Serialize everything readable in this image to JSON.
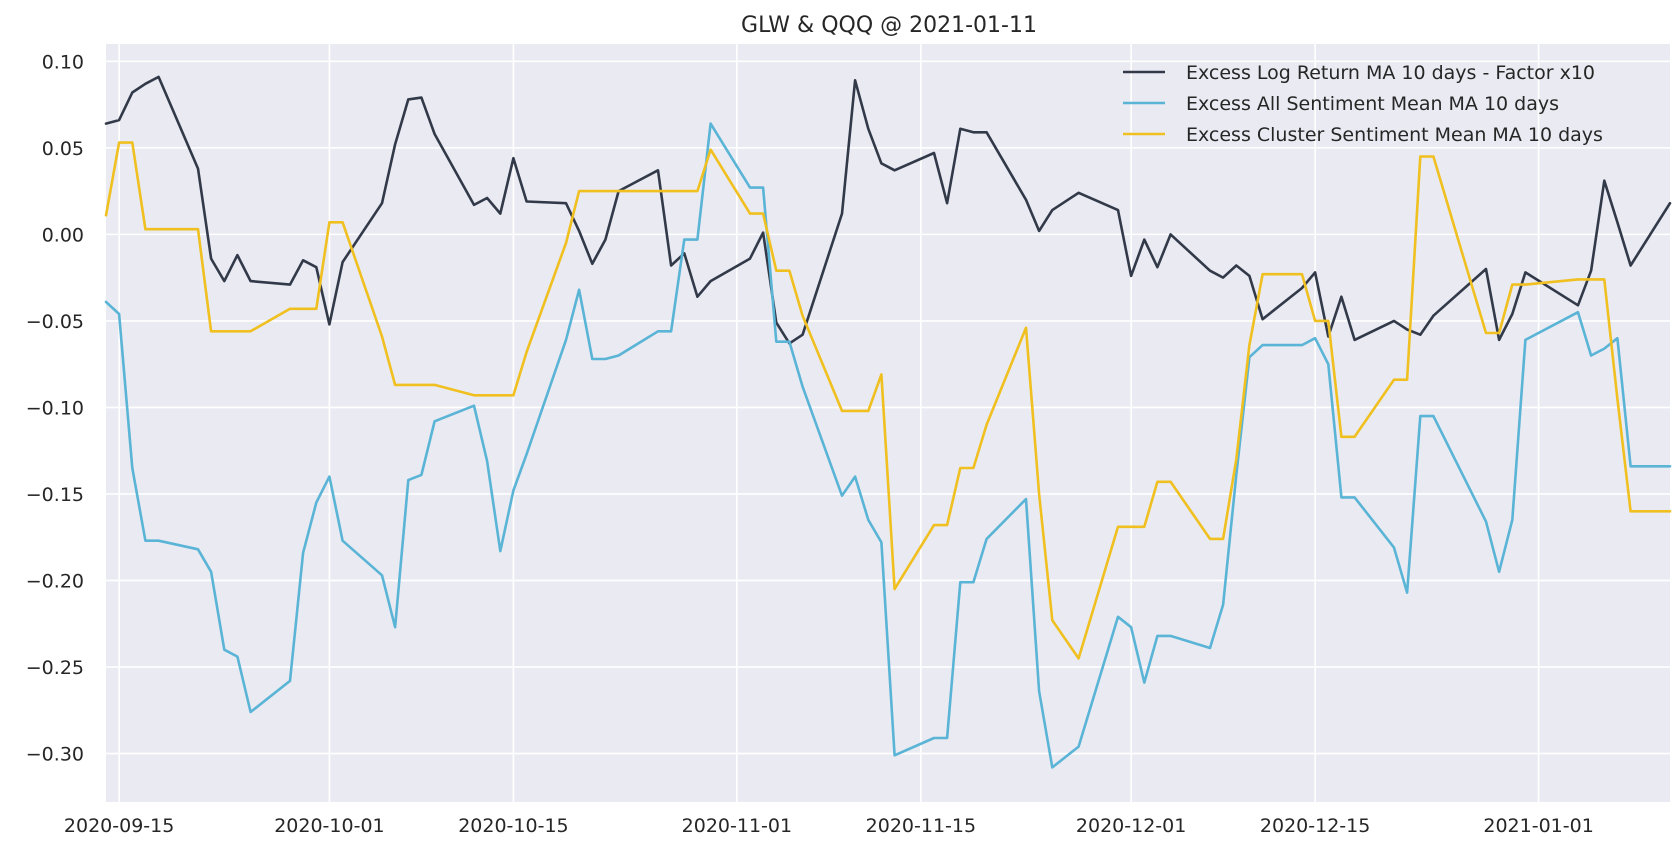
{
  "chart_data": {
    "type": "line",
    "title": "GLW & QQQ @ 2021-01-11",
    "xlabel": "",
    "ylabel": "",
    "xlim": [
      "2020-09-14",
      "2021-01-11"
    ],
    "ylim": [
      -0.328,
      0.11
    ],
    "yticks": [
      0.1,
      0.05,
      0.0,
      -0.05,
      -0.1,
      -0.15,
      -0.2,
      -0.25,
      -0.3
    ],
    "ytick_labels": [
      "0.10",
      "0.05",
      "0.00",
      "−0.05",
      "−0.10",
      "−0.15",
      "−0.20",
      "−0.25",
      "−0.30"
    ],
    "xticks": [
      "2020-09-15",
      "2020-10-01",
      "2020-10-15",
      "2020-11-01",
      "2020-11-15",
      "2020-12-01",
      "2020-12-15",
      "2021-01-01"
    ],
    "grid": true,
    "legend_position": "top-right",
    "colors": {
      "background": "#eaeaf2",
      "grid": "#ffffff",
      "text": "#262626"
    },
    "series": [
      {
        "name": "Excess Log Return MA 10 days - Factor x10",
        "color": "#323a4a",
        "points": [
          [
            "2020-09-14",
            0.064
          ],
          [
            "2020-09-15",
            0.066
          ],
          [
            "2020-09-16",
            0.082
          ],
          [
            "2020-09-17",
            0.087
          ],
          [
            "2020-09-18",
            0.091
          ],
          [
            "2020-09-21",
            0.038
          ],
          [
            "2020-09-22",
            -0.014
          ],
          [
            "2020-09-23",
            -0.027
          ],
          [
            "2020-09-24",
            -0.012
          ],
          [
            "2020-09-25",
            -0.027
          ],
          [
            "2020-09-28",
            -0.029
          ],
          [
            "2020-09-29",
            -0.015
          ],
          [
            "2020-09-30",
            -0.019
          ],
          [
            "2020-10-01",
            -0.052
          ],
          [
            "2020-10-02",
            -0.016
          ],
          [
            "2020-10-05",
            0.018
          ],
          [
            "2020-10-06",
            0.052
          ],
          [
            "2020-10-07",
            0.078
          ],
          [
            "2020-10-08",
            0.079
          ],
          [
            "2020-10-09",
            0.058
          ],
          [
            "2020-10-12",
            0.017
          ],
          [
            "2020-10-13",
            0.021
          ],
          [
            "2020-10-14",
            0.012
          ],
          [
            "2020-10-15",
            0.044
          ],
          [
            "2020-10-16",
            0.019
          ],
          [
            "2020-10-19",
            0.018
          ],
          [
            "2020-10-20",
            0.002
          ],
          [
            "2020-10-21",
            -0.017
          ],
          [
            "2020-10-22",
            -0.003
          ],
          [
            "2020-10-23",
            0.025
          ],
          [
            "2020-10-26",
            0.037
          ],
          [
            "2020-10-27",
            -0.018
          ],
          [
            "2020-10-28",
            -0.011
          ],
          [
            "2020-10-29",
            -0.036
          ],
          [
            "2020-10-30",
            -0.027
          ],
          [
            "2020-11-02",
            -0.014
          ],
          [
            "2020-11-03",
            0.001
          ],
          [
            "2020-11-04",
            -0.051
          ],
          [
            "2020-11-05",
            -0.063
          ],
          [
            "2020-11-06",
            -0.058
          ],
          [
            "2020-11-09",
            0.012
          ],
          [
            "2020-11-10",
            0.089
          ],
          [
            "2020-11-11",
            0.061
          ],
          [
            "2020-11-12",
            0.041
          ],
          [
            "2020-11-13",
            0.037
          ],
          [
            "2020-11-16",
            0.047
          ],
          [
            "2020-11-17",
            0.018
          ],
          [
            "2020-11-18",
            0.061
          ],
          [
            "2020-11-19",
            0.059
          ],
          [
            "2020-11-20",
            0.059
          ],
          [
            "2020-11-23",
            0.02
          ],
          [
            "2020-11-24",
            0.002
          ],
          [
            "2020-11-25",
            0.014
          ],
          [
            "2020-11-27",
            0.024
          ],
          [
            "2020-11-30",
            0.014
          ],
          [
            "2020-12-01",
            -0.024
          ],
          [
            "2020-12-02",
            -0.003
          ],
          [
            "2020-12-03",
            -0.019
          ],
          [
            "2020-12-04",
            0.0
          ],
          [
            "2020-12-07",
            -0.021
          ],
          [
            "2020-12-08",
            -0.025
          ],
          [
            "2020-12-09",
            -0.018
          ],
          [
            "2020-12-10",
            -0.024
          ],
          [
            "2020-12-11",
            -0.049
          ],
          [
            "2020-12-14",
            -0.031
          ],
          [
            "2020-12-15",
            -0.022
          ],
          [
            "2020-12-16",
            -0.059
          ],
          [
            "2020-12-17",
            -0.036
          ],
          [
            "2020-12-18",
            -0.061
          ],
          [
            "2020-12-21",
            -0.05
          ],
          [
            "2020-12-22",
            -0.055
          ],
          [
            "2020-12-23",
            -0.058
          ],
          [
            "2020-12-24",
            -0.047
          ],
          [
            "2020-12-28",
            -0.02
          ],
          [
            "2020-12-29",
            -0.061
          ],
          [
            "2020-12-30",
            -0.046
          ],
          [
            "2020-12-31",
            -0.022
          ],
          [
            "2021-01-04",
            -0.041
          ],
          [
            "2021-01-05",
            -0.021
          ],
          [
            "2021-01-06",
            0.031
          ],
          [
            "2021-01-07",
            0.007
          ],
          [
            "2021-01-08",
            -0.018
          ],
          [
            "2021-01-11",
            0.018
          ]
        ]
      },
      {
        "name": "Excess All Sentiment Mean MA 10 days",
        "color": "#5ab4d6",
        "points": [
          [
            "2020-09-14",
            -0.039
          ],
          [
            "2020-09-15",
            -0.046
          ],
          [
            "2020-09-16",
            -0.135
          ],
          [
            "2020-09-17",
            -0.177
          ],
          [
            "2020-09-18",
            -0.177
          ],
          [
            "2020-09-21",
            -0.182
          ],
          [
            "2020-09-22",
            -0.195
          ],
          [
            "2020-09-23",
            -0.24
          ],
          [
            "2020-09-24",
            -0.244
          ],
          [
            "2020-09-25",
            -0.276
          ],
          [
            "2020-09-28",
            -0.258
          ],
          [
            "2020-09-29",
            -0.184
          ],
          [
            "2020-09-30",
            -0.155
          ],
          [
            "2020-10-01",
            -0.14
          ],
          [
            "2020-10-02",
            -0.177
          ],
          [
            "2020-10-05",
            -0.197
          ],
          [
            "2020-10-06",
            -0.227
          ],
          [
            "2020-10-07",
            -0.142
          ],
          [
            "2020-10-08",
            -0.139
          ],
          [
            "2020-10-09",
            -0.108
          ],
          [
            "2020-10-12",
            -0.099
          ],
          [
            "2020-10-13",
            -0.131
          ],
          [
            "2020-10-14",
            -0.183
          ],
          [
            "2020-10-15",
            -0.148
          ],
          [
            "2020-10-16",
            -0.127
          ],
          [
            "2020-10-19",
            -0.061
          ],
          [
            "2020-10-20",
            -0.032
          ],
          [
            "2020-10-21",
            -0.072
          ],
          [
            "2020-10-22",
            -0.072
          ],
          [
            "2020-10-23",
            -0.07
          ],
          [
            "2020-10-26",
            -0.056
          ],
          [
            "2020-10-27",
            -0.056
          ],
          [
            "2020-10-28",
            -0.003
          ],
          [
            "2020-10-29",
            -0.003
          ],
          [
            "2020-10-30",
            0.064
          ],
          [
            "2020-11-02",
            0.027
          ],
          [
            "2020-11-03",
            0.027
          ],
          [
            "2020-11-04",
            -0.062
          ],
          [
            "2020-11-05",
            -0.062
          ],
          [
            "2020-11-06",
            -0.088
          ],
          [
            "2020-11-09",
            -0.151
          ],
          [
            "2020-11-10",
            -0.14
          ],
          [
            "2020-11-11",
            -0.165
          ],
          [
            "2020-11-12",
            -0.178
          ],
          [
            "2020-11-13",
            -0.301
          ],
          [
            "2020-11-16",
            -0.291
          ],
          [
            "2020-11-17",
            -0.291
          ],
          [
            "2020-11-18",
            -0.201
          ],
          [
            "2020-11-19",
            -0.201
          ],
          [
            "2020-11-20",
            -0.176
          ],
          [
            "2020-11-23",
            -0.153
          ],
          [
            "2020-11-24",
            -0.264
          ],
          [
            "2020-11-25",
            -0.308
          ],
          [
            "2020-11-27",
            -0.296
          ],
          [
            "2020-11-30",
            -0.221
          ],
          [
            "2020-12-01",
            -0.227
          ],
          [
            "2020-12-02",
            -0.259
          ],
          [
            "2020-12-03",
            -0.232
          ],
          [
            "2020-12-04",
            -0.232
          ],
          [
            "2020-12-07",
            -0.239
          ],
          [
            "2020-12-08",
            -0.214
          ],
          [
            "2020-12-09",
            -0.139
          ],
          [
            "2020-12-10",
            -0.071
          ],
          [
            "2020-12-11",
            -0.064
          ],
          [
            "2020-12-14",
            -0.064
          ],
          [
            "2020-12-15",
            -0.06
          ],
          [
            "2020-12-16",
            -0.075
          ],
          [
            "2020-12-17",
            -0.152
          ],
          [
            "2020-12-18",
            -0.152
          ],
          [
            "2020-12-21",
            -0.181
          ],
          [
            "2020-12-22",
            -0.207
          ],
          [
            "2020-12-23",
            -0.105
          ],
          [
            "2020-12-24",
            -0.105
          ],
          [
            "2020-12-28",
            -0.166
          ],
          [
            "2020-12-29",
            -0.195
          ],
          [
            "2020-12-30",
            -0.165
          ],
          [
            "2020-12-31",
            -0.061
          ],
          [
            "2021-01-04",
            -0.045
          ],
          [
            "2021-01-05",
            -0.07
          ],
          [
            "2021-01-06",
            -0.066
          ],
          [
            "2021-01-07",
            -0.06
          ],
          [
            "2021-01-08",
            -0.134
          ],
          [
            "2021-01-11",
            -0.134
          ]
        ]
      },
      {
        "name": "Excess Cluster Sentiment Mean MA 10 days",
        "color": "#f0c020",
        "points": [
          [
            "2020-09-14",
            0.011
          ],
          [
            "2020-09-15",
            0.053
          ],
          [
            "2020-09-16",
            0.053
          ],
          [
            "2020-09-17",
            0.003
          ],
          [
            "2020-09-18",
            0.003
          ],
          [
            "2020-09-21",
            0.003
          ],
          [
            "2020-09-22",
            -0.056
          ],
          [
            "2020-09-23",
            -0.056
          ],
          [
            "2020-09-24",
            -0.056
          ],
          [
            "2020-09-25",
            -0.056
          ],
          [
            "2020-09-28",
            -0.043
          ],
          [
            "2020-09-29",
            -0.043
          ],
          [
            "2020-09-30",
            -0.043
          ],
          [
            "2020-10-01",
            0.007
          ],
          [
            "2020-10-02",
            0.007
          ],
          [
            "2020-10-05",
            -0.059
          ],
          [
            "2020-10-06",
            -0.087
          ],
          [
            "2020-10-07",
            -0.087
          ],
          [
            "2020-10-08",
            -0.087
          ],
          [
            "2020-10-09",
            -0.087
          ],
          [
            "2020-10-12",
            -0.093
          ],
          [
            "2020-10-13",
            -0.093
          ],
          [
            "2020-10-14",
            -0.093
          ],
          [
            "2020-10-15",
            -0.093
          ],
          [
            "2020-10-16",
            -0.068
          ],
          [
            "2020-10-19",
            -0.005
          ],
          [
            "2020-10-20",
            0.025
          ],
          [
            "2020-10-21",
            0.025
          ],
          [
            "2020-10-22",
            0.025
          ],
          [
            "2020-10-23",
            0.025
          ],
          [
            "2020-10-26",
            0.025
          ],
          [
            "2020-10-27",
            0.025
          ],
          [
            "2020-10-28",
            0.025
          ],
          [
            "2020-10-29",
            0.025
          ],
          [
            "2020-10-30",
            0.049
          ],
          [
            "2020-11-02",
            0.012
          ],
          [
            "2020-11-03",
            0.012
          ],
          [
            "2020-11-04",
            -0.021
          ],
          [
            "2020-11-05",
            -0.021
          ],
          [
            "2020-11-06",
            -0.047
          ],
          [
            "2020-11-09",
            -0.102
          ],
          [
            "2020-11-10",
            -0.102
          ],
          [
            "2020-11-11",
            -0.102
          ],
          [
            "2020-11-12",
            -0.081
          ],
          [
            "2020-11-13",
            -0.205
          ],
          [
            "2020-11-16",
            -0.168
          ],
          [
            "2020-11-17",
            -0.168
          ],
          [
            "2020-11-18",
            -0.135
          ],
          [
            "2020-11-19",
            -0.135
          ],
          [
            "2020-11-20",
            -0.11
          ],
          [
            "2020-11-23",
            -0.054
          ],
          [
            "2020-11-24",
            -0.15
          ],
          [
            "2020-11-25",
            -0.223
          ],
          [
            "2020-11-27",
            -0.245
          ],
          [
            "2020-11-30",
            -0.169
          ],
          [
            "2020-12-01",
            -0.169
          ],
          [
            "2020-12-02",
            -0.169
          ],
          [
            "2020-12-03",
            -0.143
          ],
          [
            "2020-12-04",
            -0.143
          ],
          [
            "2020-12-07",
            -0.176
          ],
          [
            "2020-12-08",
            -0.176
          ],
          [
            "2020-12-09",
            -0.13
          ],
          [
            "2020-12-10",
            -0.064
          ],
          [
            "2020-12-11",
            -0.023
          ],
          [
            "2020-12-14",
            -0.023
          ],
          [
            "2020-12-15",
            -0.05
          ],
          [
            "2020-12-16",
            -0.05
          ],
          [
            "2020-12-17",
            -0.117
          ],
          [
            "2020-12-18",
            -0.117
          ],
          [
            "2020-12-21",
            -0.084
          ],
          [
            "2020-12-22",
            -0.084
          ],
          [
            "2020-12-23",
            0.045
          ],
          [
            "2020-12-24",
            0.045
          ],
          [
            "2020-12-28",
            -0.057
          ],
          [
            "2020-12-29",
            -0.057
          ],
          [
            "2020-12-30",
            -0.029
          ],
          [
            "2020-12-31",
            -0.029
          ],
          [
            "2021-01-04",
            -0.026
          ],
          [
            "2021-01-05",
            -0.026
          ],
          [
            "2021-01-06",
            -0.026
          ],
          [
            "2021-01-07",
            -0.095
          ],
          [
            "2021-01-08",
            -0.16
          ],
          [
            "2021-01-11",
            -0.16
          ]
        ]
      }
    ]
  }
}
